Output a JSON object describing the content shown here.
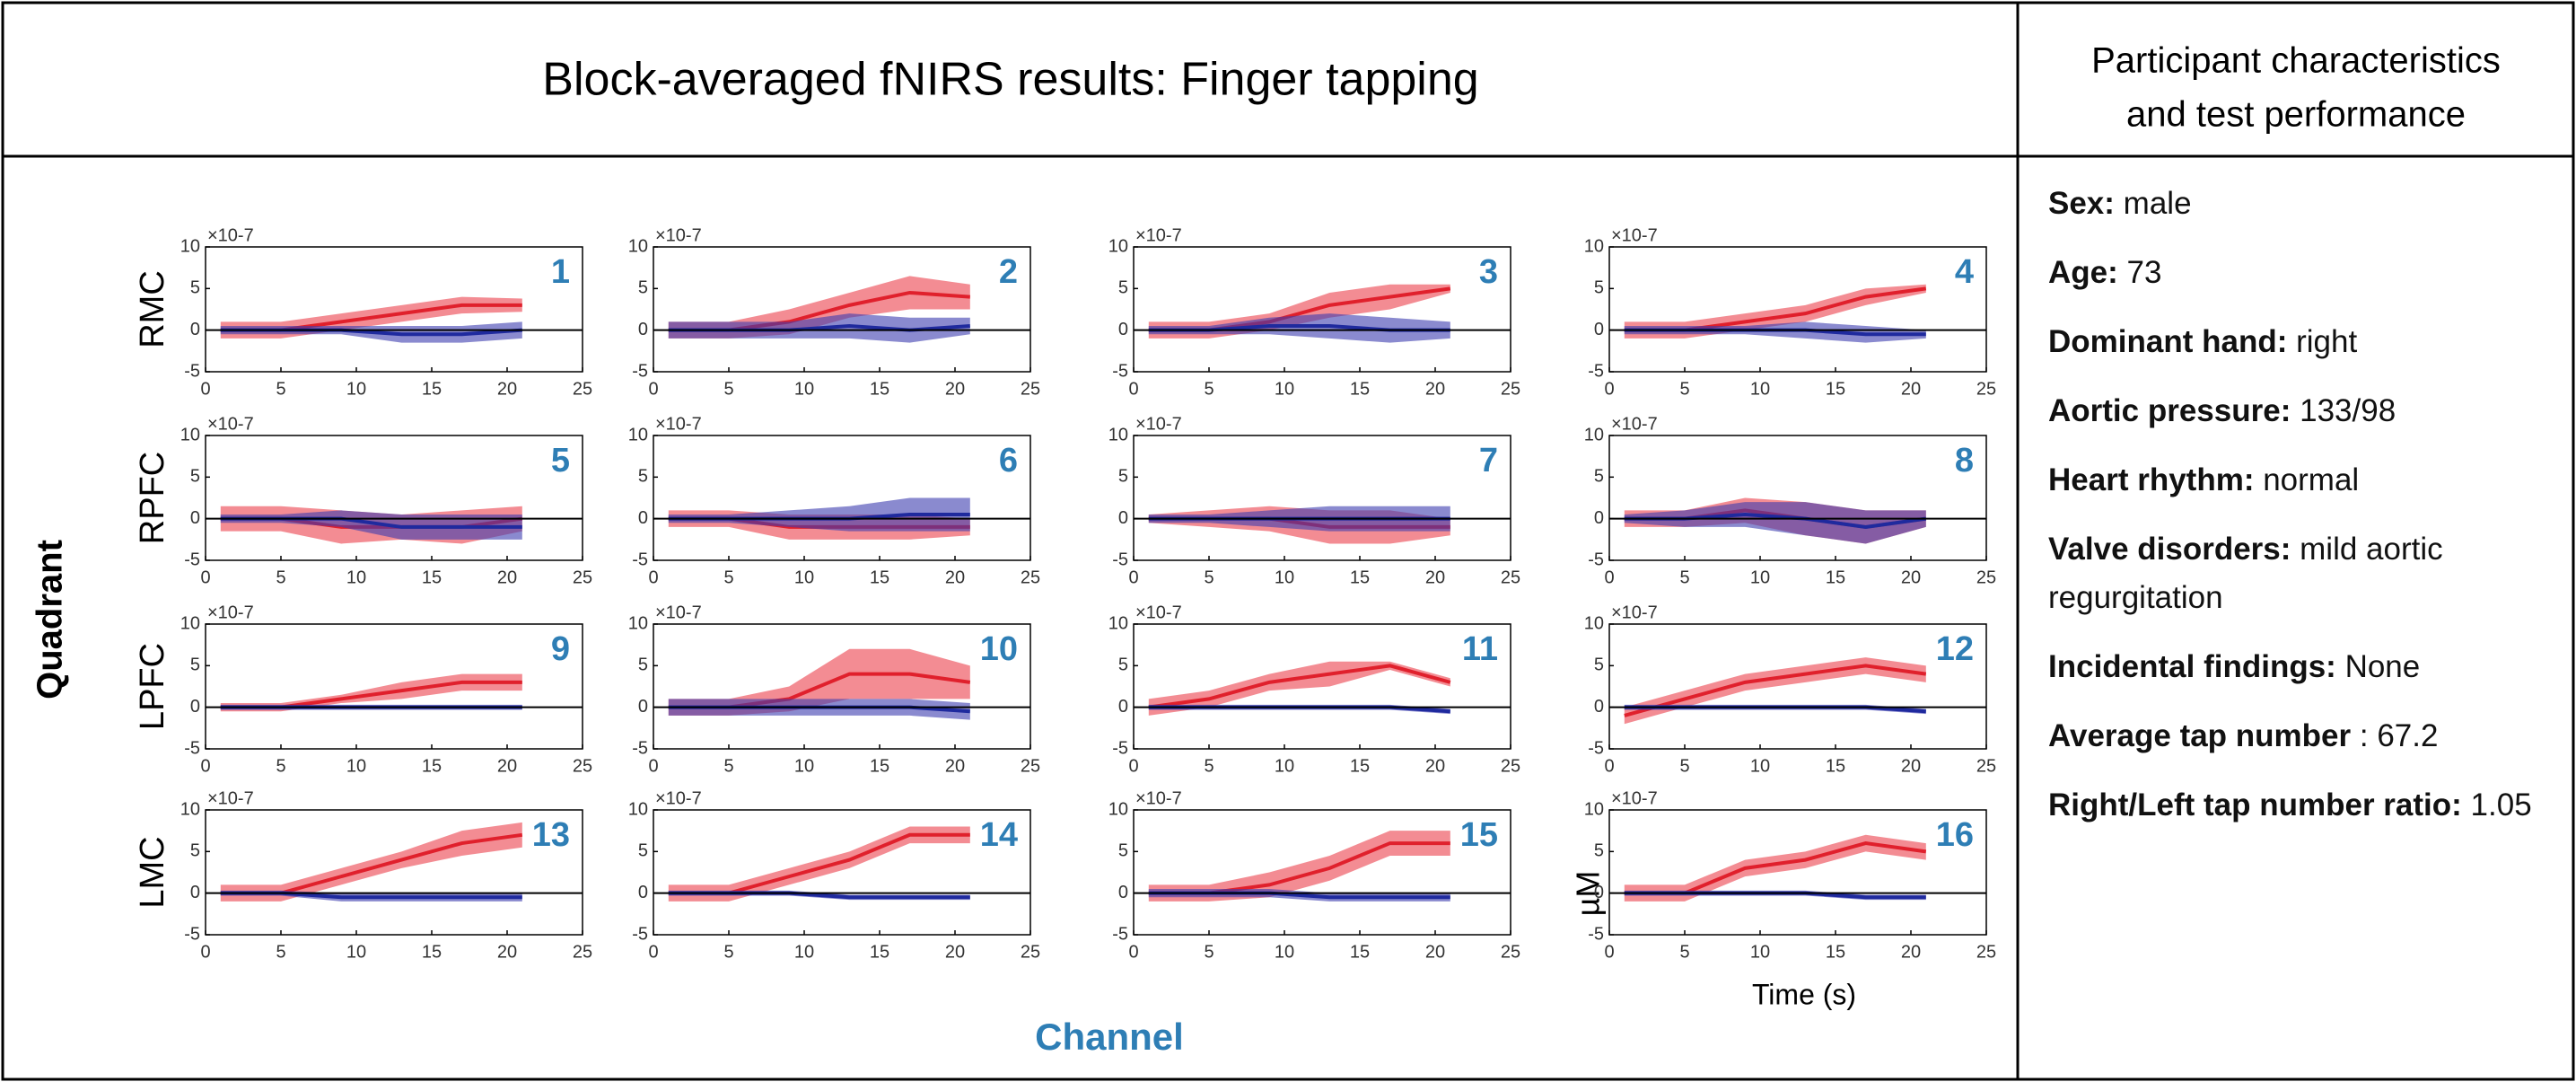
{
  "header": {
    "title": "Block-averaged fNIRS results: Finger tapping",
    "side_title": [
      "Participant characteristics",
      "and test performance"
    ]
  },
  "figure": {
    "rows": [
      "RMC",
      "RPFC",
      "LPFC",
      "LMC"
    ],
    "ylabel": "Quadrant",
    "xlabel": "Channel",
    "unit": "µM",
    "time_label": "Time (s)"
  },
  "panel": [
    {
      "label": "Sex:",
      "value": "male"
    },
    {
      "label": "Age:",
      "value": "73"
    },
    {
      "label": "Dominant hand:",
      "value": "right"
    },
    {
      "label": "Aortic pressure:",
      "value": "133/98"
    },
    {
      "label": "Heart rhythm:",
      "value": "normal"
    },
    {
      "label": "Valve disorders:",
      "value": "mild aortic regurgitation"
    },
    {
      "label": "Incidental findings:",
      "value": "None"
    },
    {
      "label": "Average tap number",
      "value": ": 67.2"
    },
    {
      "label": "Right/Left tap number ratio:",
      "value": "1.05"
    }
  ],
  "chart_data": [
    {
      "type": "line",
      "title": "1",
      "scale_label": "×10-7",
      "x": [
        1,
        5,
        9,
        13,
        17,
        21
      ],
      "xlim": [
        0,
        25
      ],
      "xticks": [
        0,
        5,
        10,
        15,
        20,
        25
      ],
      "ylim": [
        -5,
        10
      ],
      "yticks": [
        -5,
        0,
        5,
        10
      ],
      "series": [
        {
          "color": "#e0202c",
          "values": [
            0,
            0,
            1,
            2,
            3,
            3
          ],
          "errors": [
            1,
            1,
            1,
            1,
            1,
            0.8
          ]
        },
        {
          "color": "#1f2a9e",
          "values": [
            0,
            0,
            0,
            -0.5,
            -0.5,
            0
          ],
          "errors": [
            0.5,
            0.5,
            0.5,
            1,
            1,
            1
          ]
        }
      ]
    },
    {
      "type": "line",
      "title": "2",
      "scale_label": "×10-7",
      "x": [
        1,
        5,
        9,
        13,
        17,
        21
      ],
      "xlim": [
        0,
        25
      ],
      "xticks": [
        0,
        5,
        10,
        15,
        20,
        25
      ],
      "ylim": [
        -5,
        10
      ],
      "yticks": [
        -5,
        0,
        5,
        10
      ],
      "series": [
        {
          "color": "#e0202c",
          "values": [
            0,
            0,
            1,
            3,
            4.5,
            4
          ],
          "errors": [
            1,
            1,
            1.5,
            1.5,
            2,
            1.5
          ]
        },
        {
          "color": "#1f2a9e",
          "values": [
            0,
            0,
            0,
            0.5,
            0,
            0.5
          ],
          "errors": [
            1,
            1,
            1,
            1.5,
            1.5,
            1
          ]
        }
      ]
    },
    {
      "type": "line",
      "title": "3",
      "scale_label": "×10-7",
      "x": [
        1,
        5,
        9,
        13,
        17,
        21
      ],
      "xlim": [
        0,
        25
      ],
      "xticks": [
        0,
        5,
        10,
        15,
        20,
        25
      ],
      "ylim": [
        -5,
        10
      ],
      "yticks": [
        -5,
        0,
        5,
        10
      ],
      "series": [
        {
          "color": "#e0202c",
          "values": [
            0,
            0,
            1,
            3,
            4,
            5
          ],
          "errors": [
            1,
            1,
            1,
            1.5,
            1.5,
            0.5
          ]
        },
        {
          "color": "#1f2a9e",
          "values": [
            0,
            0,
            0.5,
            0.5,
            0,
            0
          ],
          "errors": [
            0.5,
            0.5,
            1,
            1.5,
            1.5,
            1
          ]
        }
      ]
    },
    {
      "type": "line",
      "title": "4",
      "scale_label": "×10-7",
      "x": [
        1,
        5,
        9,
        13,
        17,
        21
      ],
      "xlim": [
        0,
        25
      ],
      "xticks": [
        0,
        5,
        10,
        15,
        20,
        25
      ],
      "ylim": [
        -5,
        10
      ],
      "yticks": [
        -5,
        0,
        5,
        10
      ],
      "series": [
        {
          "color": "#e0202c",
          "values": [
            0,
            0,
            1,
            2,
            4,
            5
          ],
          "errors": [
            1,
            1,
            1,
            1,
            1,
            0.5
          ]
        },
        {
          "color": "#1f2a9e",
          "values": [
            0,
            0,
            0,
            0,
            -0.5,
            -0.5
          ],
          "errors": [
            0.5,
            0.5,
            0.5,
            1,
            1,
            0.5
          ]
        }
      ]
    },
    {
      "type": "line",
      "title": "5",
      "scale_label": "×10-7",
      "x": [
        1,
        5,
        9,
        13,
        17,
        21
      ],
      "xlim": [
        0,
        25
      ],
      "xticks": [
        0,
        5,
        10,
        15,
        20,
        25
      ],
      "ylim": [
        -5,
        10
      ],
      "yticks": [
        -5,
        0,
        5,
        10
      ],
      "series": [
        {
          "color": "#e0202c",
          "values": [
            0,
            0,
            -1,
            -1,
            -1,
            0
          ],
          "errors": [
            1.5,
            1.5,
            2,
            1.5,
            2,
            1.5
          ]
        },
        {
          "color": "#1f2a9e",
          "values": [
            0,
            0,
            0,
            -1,
            -1,
            -1
          ],
          "errors": [
            0.5,
            0.5,
            1,
            1.5,
            1.5,
            1.5
          ]
        }
      ]
    },
    {
      "type": "line",
      "title": "6",
      "scale_label": "×10-7",
      "x": [
        1,
        5,
        9,
        13,
        17,
        21
      ],
      "xlim": [
        0,
        25
      ],
      "xticks": [
        0,
        5,
        10,
        15,
        20,
        25
      ],
      "ylim": [
        -5,
        10
      ],
      "yticks": [
        -5,
        0,
        5,
        10
      ],
      "series": [
        {
          "color": "#e0202c",
          "values": [
            0,
            0,
            -1,
            -1,
            -1,
            -1
          ],
          "errors": [
            1,
            1,
            1.5,
            1.5,
            1.5,
            1
          ]
        },
        {
          "color": "#1f2a9e",
          "values": [
            0,
            0,
            0,
            0,
            0.5,
            0.5
          ],
          "errors": [
            0.5,
            0.5,
            1,
            1.5,
            2,
            2
          ]
        }
      ]
    },
    {
      "type": "line",
      "title": "7",
      "scale_label": "×10-7",
      "x": [
        1,
        5,
        9,
        13,
        17,
        21
      ],
      "xlim": [
        0,
        25
      ],
      "xticks": [
        0,
        5,
        10,
        15,
        20,
        25
      ],
      "ylim": [
        -5,
        10
      ],
      "yticks": [
        -5,
        0,
        5,
        10
      ],
      "series": [
        {
          "color": "#e0202c",
          "values": [
            0,
            0,
            0,
            -1,
            -1,
            -1
          ],
          "errors": [
            0.5,
            1,
            1.5,
            2,
            2,
            1
          ]
        },
        {
          "color": "#1f2a9e",
          "values": [
            0,
            0,
            0,
            0,
            0,
            0
          ],
          "errors": [
            0.5,
            0.5,
            1,
            1.5,
            1.5,
            1.5
          ]
        }
      ]
    },
    {
      "type": "line",
      "title": "8",
      "scale_label": "×10-7",
      "x": [
        1,
        5,
        9,
        13,
        17,
        21
      ],
      "xlim": [
        0,
        25
      ],
      "xticks": [
        0,
        5,
        10,
        15,
        20,
        25
      ],
      "ylim": [
        -5,
        10
      ],
      "yticks": [
        -5,
        0,
        5,
        10
      ],
      "series": [
        {
          "color": "#e0202c",
          "values": [
            0,
            0,
            1,
            0,
            -1,
            0
          ],
          "errors": [
            1,
            1,
            1.5,
            2,
            2,
            1
          ]
        },
        {
          "color": "#1f2a9e",
          "values": [
            0,
            0,
            0.5,
            0,
            -1,
            0
          ],
          "errors": [
            0.5,
            1,
            1.5,
            2,
            2,
            1
          ]
        }
      ]
    },
    {
      "type": "line",
      "title": "9",
      "scale_label": "×10-7",
      "x": [
        1,
        5,
        9,
        13,
        17,
        21
      ],
      "xlim": [
        0,
        25
      ],
      "xticks": [
        0,
        5,
        10,
        15,
        20,
        25
      ],
      "ylim": [
        -5,
        10
      ],
      "yticks": [
        -5,
        0,
        5,
        10
      ],
      "series": [
        {
          "color": "#e0202c",
          "values": [
            0,
            0,
            1,
            2,
            3,
            3
          ],
          "errors": [
            0.5,
            0.5,
            0.5,
            1,
            1,
            1
          ]
        },
        {
          "color": "#1f2a9e",
          "values": [
            0,
            0,
            0,
            0,
            0,
            0
          ],
          "errors": [
            0.3,
            0.3,
            0.3,
            0.3,
            0.3,
            0.3
          ]
        }
      ]
    },
    {
      "type": "line",
      "title": "10",
      "scale_label": "×10-7",
      "x": [
        1,
        5,
        9,
        13,
        17,
        21
      ],
      "xlim": [
        0,
        25
      ],
      "xticks": [
        0,
        5,
        10,
        15,
        20,
        25
      ],
      "ylim": [
        -5,
        10
      ],
      "yticks": [
        -5,
        0,
        5,
        10
      ],
      "series": [
        {
          "color": "#e0202c",
          "values": [
            0,
            0,
            1,
            4,
            4,
            3
          ],
          "errors": [
            1,
            1,
            1.5,
            3,
            3,
            2
          ]
        },
        {
          "color": "#1f2a9e",
          "values": [
            0,
            0,
            0,
            0,
            0,
            -0.5
          ],
          "errors": [
            1,
            1,
            1,
            1,
            1,
            1
          ]
        }
      ]
    },
    {
      "type": "line",
      "title": "11",
      "scale_label": "×10-7",
      "x": [
        1,
        5,
        9,
        13,
        17,
        21
      ],
      "xlim": [
        0,
        25
      ],
      "xticks": [
        0,
        5,
        10,
        15,
        20,
        25
      ],
      "ylim": [
        -5,
        10
      ],
      "yticks": [
        -5,
        0,
        5,
        10
      ],
      "series": [
        {
          "color": "#e0202c",
          "values": [
            0,
            1,
            3,
            4,
            5,
            3
          ],
          "errors": [
            1,
            1,
            1,
            1.5,
            0.5,
            0.5
          ]
        },
        {
          "color": "#1f2a9e",
          "values": [
            0,
            0,
            0,
            0,
            0,
            -0.5
          ],
          "errors": [
            0.3,
            0.3,
            0.3,
            0.3,
            0.3,
            0.3
          ]
        }
      ]
    },
    {
      "type": "line",
      "title": "12",
      "scale_label": "×10-7",
      "x": [
        1,
        5,
        9,
        13,
        17,
        21
      ],
      "xlim": [
        0,
        25
      ],
      "xticks": [
        0,
        5,
        10,
        15,
        20,
        25
      ],
      "ylim": [
        -5,
        10
      ],
      "yticks": [
        -5,
        0,
        5,
        10
      ],
      "series": [
        {
          "color": "#e0202c",
          "values": [
            -1,
            1,
            3,
            4,
            5,
            4
          ],
          "errors": [
            1,
            1,
            1,
            1,
            1,
            1
          ]
        },
        {
          "color": "#1f2a9e",
          "values": [
            0,
            0,
            0,
            0,
            0,
            -0.5
          ],
          "errors": [
            0.3,
            0.3,
            0.3,
            0.3,
            0.3,
            0.3
          ]
        }
      ]
    },
    {
      "type": "line",
      "title": "13",
      "scale_label": "×10-7",
      "x": [
        1,
        5,
        9,
        13,
        17,
        21
      ],
      "xlim": [
        0,
        25
      ],
      "xticks": [
        0,
        5,
        10,
        15,
        20,
        25
      ],
      "ylim": [
        -5,
        10
      ],
      "yticks": [
        -5,
        0,
        5,
        10
      ],
      "series": [
        {
          "color": "#e0202c",
          "values": [
            0,
            0,
            2,
            4,
            6,
            7
          ],
          "errors": [
            1,
            1,
            1,
            1,
            1.5,
            1.5
          ]
        },
        {
          "color": "#1f2a9e",
          "values": [
            0,
            0,
            -0.5,
            -0.5,
            -0.5,
            -0.5
          ],
          "errors": [
            0.3,
            0.3,
            0.5,
            0.5,
            0.5,
            0.5
          ]
        }
      ]
    },
    {
      "type": "line",
      "title": "14",
      "scale_label": "×10-7",
      "x": [
        1,
        5,
        9,
        13,
        17,
        21
      ],
      "xlim": [
        0,
        25
      ],
      "xticks": [
        0,
        5,
        10,
        15,
        20,
        25
      ],
      "ylim": [
        -5,
        10
      ],
      "yticks": [
        -5,
        0,
        5,
        10
      ],
      "series": [
        {
          "color": "#e0202c",
          "values": [
            0,
            0,
            2,
            4,
            7,
            7
          ],
          "errors": [
            1,
            1,
            1,
            1,
            1,
            1
          ]
        },
        {
          "color": "#1f2a9e",
          "values": [
            0,
            0,
            0,
            -0.5,
            -0.5,
            -0.5
          ],
          "errors": [
            0.3,
            0.3,
            0.3,
            0.3,
            0.3,
            0.3
          ]
        }
      ]
    },
    {
      "type": "line",
      "title": "15",
      "scale_label": "×10-7",
      "x": [
        1,
        5,
        9,
        13,
        17,
        21
      ],
      "xlim": [
        0,
        25
      ],
      "xticks": [
        0,
        5,
        10,
        15,
        20,
        25
      ],
      "ylim": [
        -5,
        10
      ],
      "yticks": [
        -5,
        0,
        5,
        10
      ],
      "series": [
        {
          "color": "#e0202c",
          "values": [
            0,
            0,
            1,
            3,
            6,
            6
          ],
          "errors": [
            1,
            1,
            1.5,
            1.5,
            1.5,
            1.5
          ]
        },
        {
          "color": "#1f2a9e",
          "values": [
            0,
            0,
            0,
            -0.5,
            -0.5,
            -0.5
          ],
          "errors": [
            0.5,
            0.5,
            0.5,
            0.5,
            0.5,
            0.5
          ]
        }
      ]
    },
    {
      "type": "line",
      "title": "16",
      "scale_label": "×10-7",
      "x": [
        1,
        5,
        9,
        13,
        17,
        21
      ],
      "xlim": [
        0,
        25
      ],
      "xticks": [
        0,
        5,
        10,
        15,
        20,
        25
      ],
      "ylim": [
        -5,
        10
      ],
      "yticks": [
        -5,
        0,
        5,
        10
      ],
      "series": [
        {
          "color": "#e0202c",
          "values": [
            0,
            0,
            3,
            4,
            6,
            5
          ],
          "errors": [
            1,
            1,
            1,
            1,
            1,
            1
          ]
        },
        {
          "color": "#1f2a9e",
          "values": [
            0,
            0,
            0,
            0,
            -0.5,
            -0.5
          ],
          "errors": [
            0.3,
            0.3,
            0.3,
            0.3,
            0.3,
            0.3
          ]
        }
      ]
    }
  ]
}
